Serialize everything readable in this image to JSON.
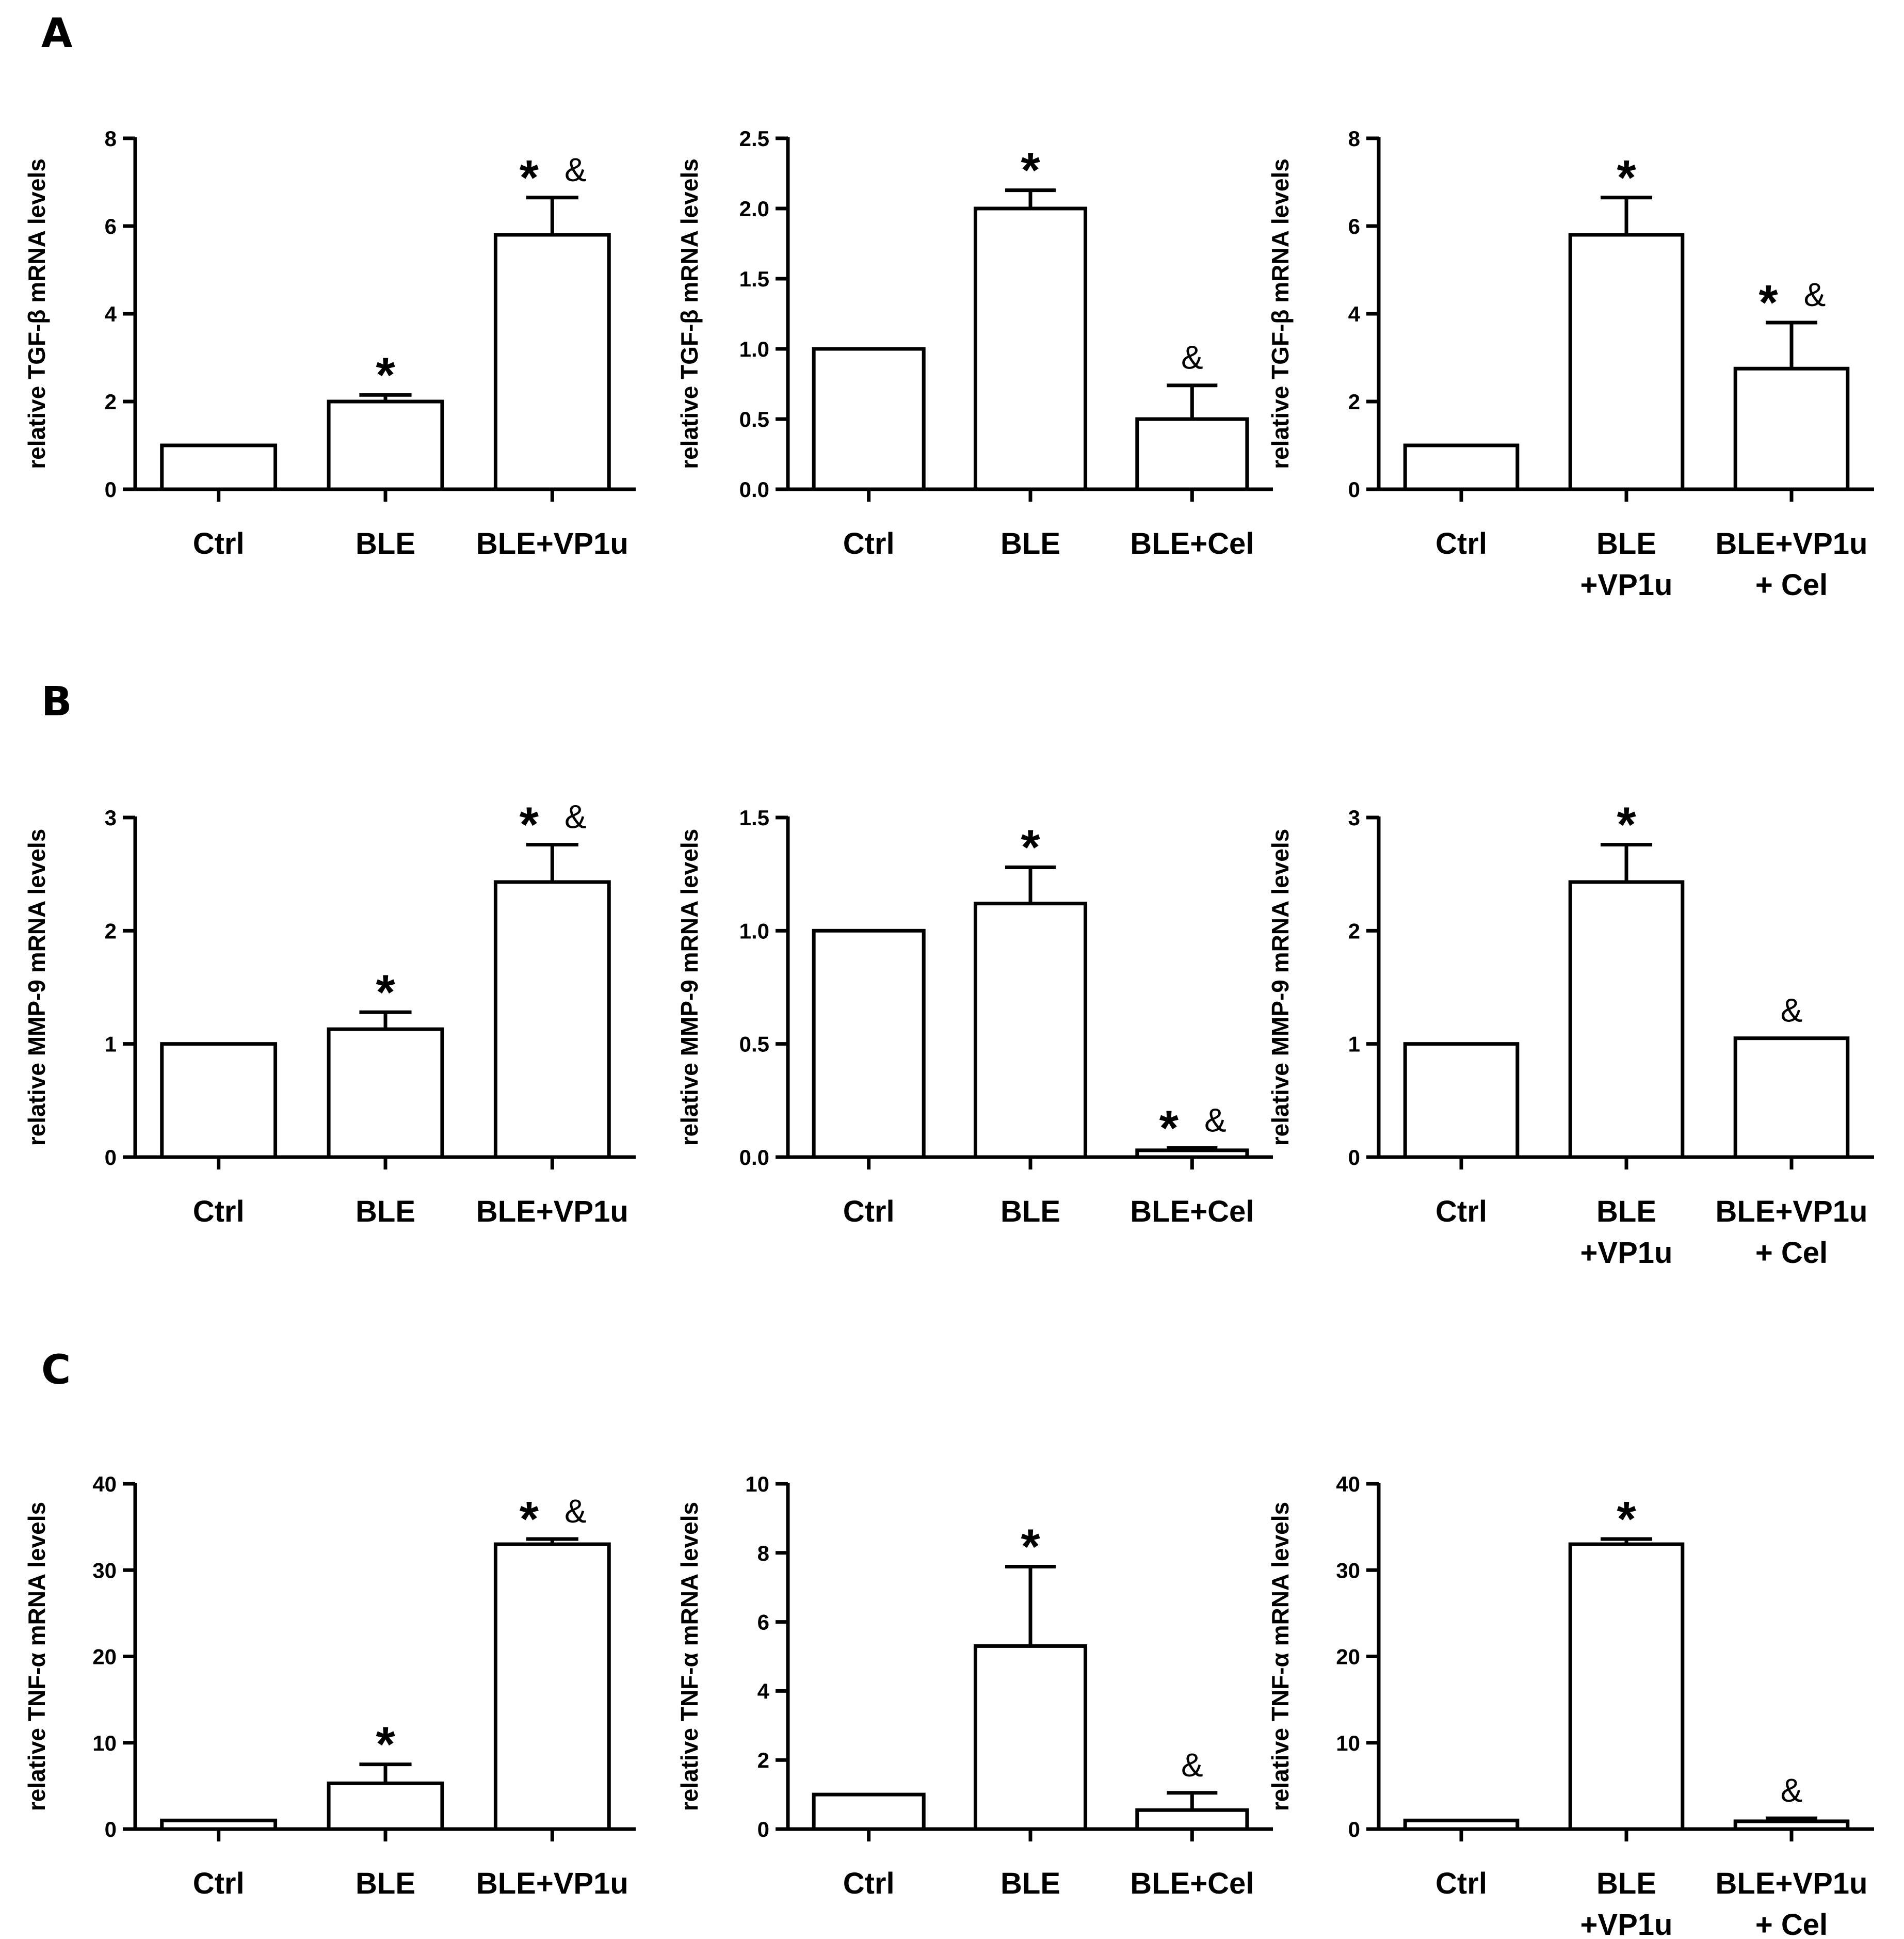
{
  "figure": {
    "row_labels": [
      "A",
      "B",
      "C"
    ]
  },
  "chart_data": [
    {
      "panel": "A",
      "position": "left",
      "type": "bar",
      "ylabel": "relative TGF-β  mRNA levels",
      "ylim": [
        0,
        8
      ],
      "yticks": [
        "0",
        "2",
        "4",
        "6",
        "8"
      ],
      "categories": [
        [
          "Ctrl"
        ],
        [
          "BLE"
        ],
        [
          "BLE+VP1u"
        ]
      ],
      "values": [
        1.0,
        2.0,
        5.8
      ],
      "errors": [
        0,
        0.15,
        0.85
      ],
      "annotations": [
        [],
        [
          "*"
        ],
        [
          "*",
          "&"
        ]
      ]
    },
    {
      "panel": "A",
      "position": "middle",
      "type": "bar",
      "ylabel": "relative TGF-β  mRNA levels",
      "ylim": [
        0,
        2.5
      ],
      "yticks": [
        "0.0",
        "0.5",
        "1.0",
        "1.5",
        "2.0",
        "2.5"
      ],
      "categories": [
        [
          "Ctrl"
        ],
        [
          "BLE"
        ],
        [
          "BLE+Cel"
        ]
      ],
      "values": [
        1.0,
        2.0,
        0.5
      ],
      "errors": [
        0,
        0.13,
        0.24
      ],
      "annotations": [
        [],
        [
          "*"
        ],
        [
          "&"
        ]
      ]
    },
    {
      "panel": "A",
      "position": "right",
      "type": "bar",
      "ylabel": "relative TGF-β  mRNA levels",
      "ylim": [
        0,
        8
      ],
      "yticks": [
        "0",
        "2",
        "4",
        "6",
        "8"
      ],
      "categories": [
        [
          "Ctrl"
        ],
        [
          "BLE",
          "+VP1u"
        ],
        [
          "BLE+VP1u",
          "+ Cel"
        ]
      ],
      "values": [
        1.0,
        5.8,
        2.75
      ],
      "errors": [
        0,
        0.85,
        1.05
      ],
      "annotations": [
        [],
        [
          "*"
        ],
        [
          "*",
          "&"
        ]
      ]
    },
    {
      "panel": "B",
      "position": "left",
      "type": "bar",
      "ylabel": "relative MMP-9  mRNA levels",
      "ylim": [
        0,
        3
      ],
      "yticks": [
        "0",
        "1",
        "2",
        "3"
      ],
      "categories": [
        [
          "Ctrl"
        ],
        [
          "BLE"
        ],
        [
          "BLE+VP1u"
        ]
      ],
      "values": [
        1.0,
        1.13,
        2.43
      ],
      "errors": [
        0,
        0.15,
        0.33
      ],
      "annotations": [
        [],
        [
          "*"
        ],
        [
          "*",
          "&"
        ]
      ]
    },
    {
      "panel": "B",
      "position": "middle",
      "type": "bar",
      "ylabel": "relative MMP-9  mRNA levels",
      "ylim": [
        0,
        1.5
      ],
      "yticks": [
        "0.0",
        "0.5",
        "1.0",
        "1.5"
      ],
      "categories": [
        [
          "Ctrl"
        ],
        [
          "BLE"
        ],
        [
          "BLE+Cel"
        ]
      ],
      "values": [
        1.0,
        1.12,
        0.03
      ],
      "errors": [
        0,
        0.16,
        0.01
      ],
      "annotations": [
        [],
        [
          "*"
        ],
        [
          "*",
          "&"
        ]
      ]
    },
    {
      "panel": "B",
      "position": "right",
      "type": "bar",
      "ylabel": "relative MMP-9  mRNA levels",
      "ylim": [
        0,
        3
      ],
      "yticks": [
        "0",
        "1",
        "2",
        "3"
      ],
      "categories": [
        [
          "Ctrl"
        ],
        [
          "BLE",
          "+VP1u"
        ],
        [
          "BLE+VP1u",
          "+ Cel"
        ]
      ],
      "values": [
        1.0,
        2.43,
        1.05
      ],
      "errors": [
        0,
        0.33,
        0
      ],
      "annotations": [
        [],
        [
          "*"
        ],
        [
          "&"
        ]
      ]
    },
    {
      "panel": "C",
      "position": "left",
      "type": "bar",
      "ylabel": "relative TNF-α  mRNA levels",
      "ylim": [
        0,
        40
      ],
      "yticks": [
        "0",
        "10",
        "20",
        "30",
        "40"
      ],
      "categories": [
        [
          "Ctrl"
        ],
        [
          "BLE"
        ],
        [
          "BLE+VP1u"
        ]
      ],
      "values": [
        1.0,
        5.3,
        33.0
      ],
      "errors": [
        0,
        2.2,
        0.6
      ],
      "annotations": [
        [],
        [
          "*"
        ],
        [
          "*",
          "&"
        ]
      ]
    },
    {
      "panel": "C",
      "position": "middle",
      "type": "bar",
      "ylabel": "relative TNF-α  mRNA levels",
      "ylim": [
        0,
        10
      ],
      "yticks": [
        "0",
        "2",
        "4",
        "6",
        "8",
        "10"
      ],
      "categories": [
        [
          "Ctrl"
        ],
        [
          "BLE"
        ],
        [
          "BLE+Cel"
        ]
      ],
      "values": [
        1.0,
        5.3,
        0.55
      ],
      "errors": [
        0,
        2.3,
        0.5
      ],
      "annotations": [
        [],
        [
          "*"
        ],
        [
          "&"
        ]
      ]
    },
    {
      "panel": "C",
      "position": "right",
      "type": "bar",
      "ylabel": "relative TNF-α  mRNA levels",
      "ylim": [
        0,
        40
      ],
      "yticks": [
        "0",
        "10",
        "20",
        "30",
        "40"
      ],
      "categories": [
        [
          "Ctrl"
        ],
        [
          "BLE",
          "+VP1u"
        ],
        [
          "BLE+VP1u",
          "+ Cel"
        ]
      ],
      "values": [
        1.0,
        33.0,
        0.9
      ],
      "errors": [
        0,
        0.6,
        0.35
      ],
      "annotations": [
        [],
        [
          "*"
        ],
        [
          "&"
        ]
      ]
    }
  ]
}
